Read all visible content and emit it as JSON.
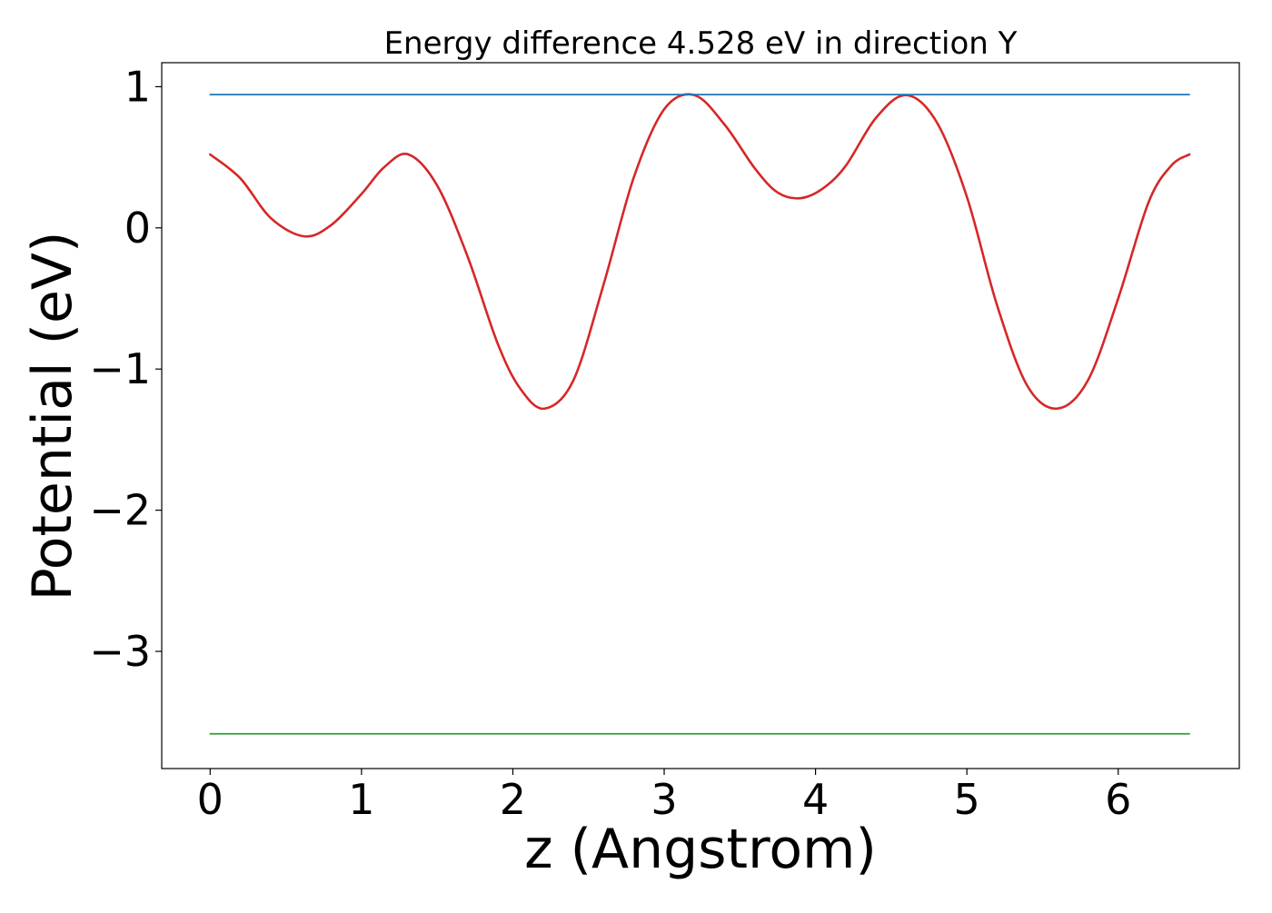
{
  "chart_data": {
    "type": "line",
    "title": "Energy difference 4.528 eV in direction Y",
    "xlabel": "z (Angstrom)",
    "ylabel": "Potential (eV)",
    "xlim": [
      -0.32,
      6.8
    ],
    "ylim": [
      -3.83,
      1.17
    ],
    "xticks": [
      0,
      1,
      2,
      3,
      4,
      5,
      6
    ],
    "xtick_labels": [
      "0",
      "1",
      "2",
      "3",
      "4",
      "5",
      "6"
    ],
    "yticks": [
      1,
      0,
      -1,
      -2,
      -3
    ],
    "ytick_labels": [
      "1",
      "0",
      "−1",
      "−2",
      "−3"
    ],
    "grid": false,
    "legend": "none",
    "series": [
      {
        "color": "#d62728",
        "x": [
          0.0,
          0.2,
          0.4,
          0.62,
          0.8,
          1.0,
          1.15,
          1.31,
          1.5,
          1.7,
          1.9,
          2.05,
          2.21,
          2.4,
          2.6,
          2.8,
          3.0,
          3.2,
          3.4,
          3.6,
          3.75,
          3.9,
          4.05,
          4.2,
          4.4,
          4.6,
          4.8,
          5.0,
          5.2,
          5.4,
          5.6,
          5.8,
          6.0,
          6.2,
          6.35,
          6.47
        ],
        "y": [
          0.52,
          0.35,
          0.07,
          -0.06,
          0.02,
          0.24,
          0.43,
          0.52,
          0.3,
          -0.2,
          -0.82,
          -1.14,
          -1.28,
          -1.08,
          -0.4,
          0.36,
          0.84,
          0.94,
          0.73,
          0.42,
          0.25,
          0.21,
          0.28,
          0.44,
          0.78,
          0.94,
          0.75,
          0.22,
          -0.55,
          -1.12,
          -1.28,
          -1.08,
          -0.5,
          0.18,
          0.44,
          0.52
        ]
      },
      {
        "color": "#1f77b4",
        "x": [
          0.0,
          6.47
        ],
        "y": [
          0.944,
          0.944
        ]
      },
      {
        "color": "#2ca02c",
        "x": [
          0.0,
          6.47
        ],
        "y": [
          -3.584,
          -3.584
        ]
      }
    ]
  }
}
